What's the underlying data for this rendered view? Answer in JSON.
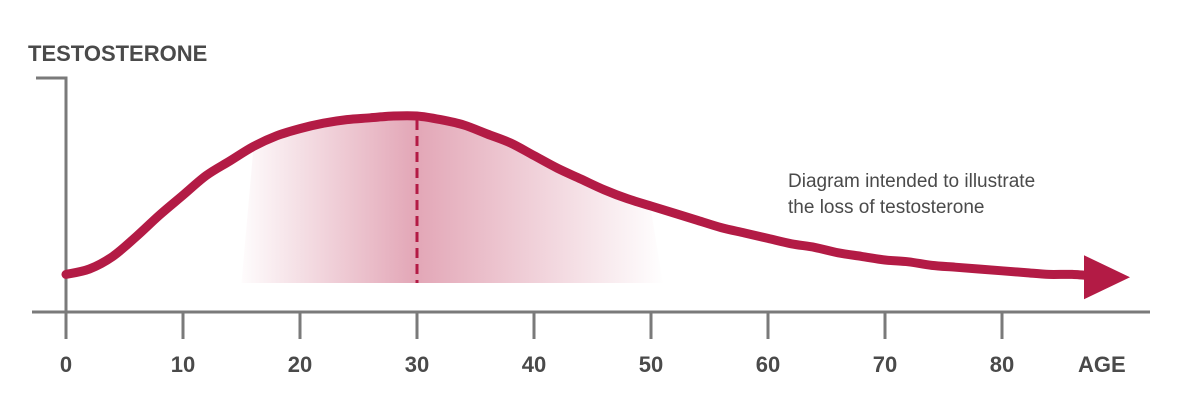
{
  "chart_data": {
    "type": "line",
    "title": "",
    "ylabel": "TESTOSTERONE",
    "xlabel": "AGE",
    "xlim": [
      0,
      92
    ],
    "ylim": [
      0,
      1
    ],
    "x_ticks": [
      0,
      10,
      20,
      30,
      40,
      50,
      60,
      70,
      80
    ],
    "grid": false,
    "series": [
      {
        "color": "#b31b45",
        "x": [
          0,
          2,
          4,
          6,
          8,
          10,
          12,
          14,
          16,
          18,
          20,
          22,
          24,
          26,
          28,
          30,
          32,
          34,
          36,
          38,
          40,
          42,
          44,
          46,
          48,
          50,
          52,
          54,
          56,
          58,
          60,
          62,
          64,
          66,
          68,
          70,
          72,
          74,
          76,
          78,
          80,
          82,
          84,
          86,
          88
        ],
        "y": [
          0.12,
          0.15,
          0.22,
          0.33,
          0.45,
          0.56,
          0.67,
          0.75,
          0.83,
          0.89,
          0.93,
          0.96,
          0.98,
          0.99,
          1.0,
          1.0,
          0.98,
          0.95,
          0.9,
          0.85,
          0.78,
          0.71,
          0.65,
          0.59,
          0.54,
          0.5,
          0.46,
          0.42,
          0.38,
          0.35,
          0.32,
          0.29,
          0.27,
          0.24,
          0.22,
          0.2,
          0.19,
          0.17,
          0.16,
          0.15,
          0.14,
          0.13,
          0.12,
          0.12,
          0.11
        ]
      }
    ],
    "peak_x": 30,
    "shaded_range": [
      15,
      51
    ],
    "annotation_lines": [
      "Diagram intended to illustrate",
      "the loss of testosterone"
    ]
  }
}
